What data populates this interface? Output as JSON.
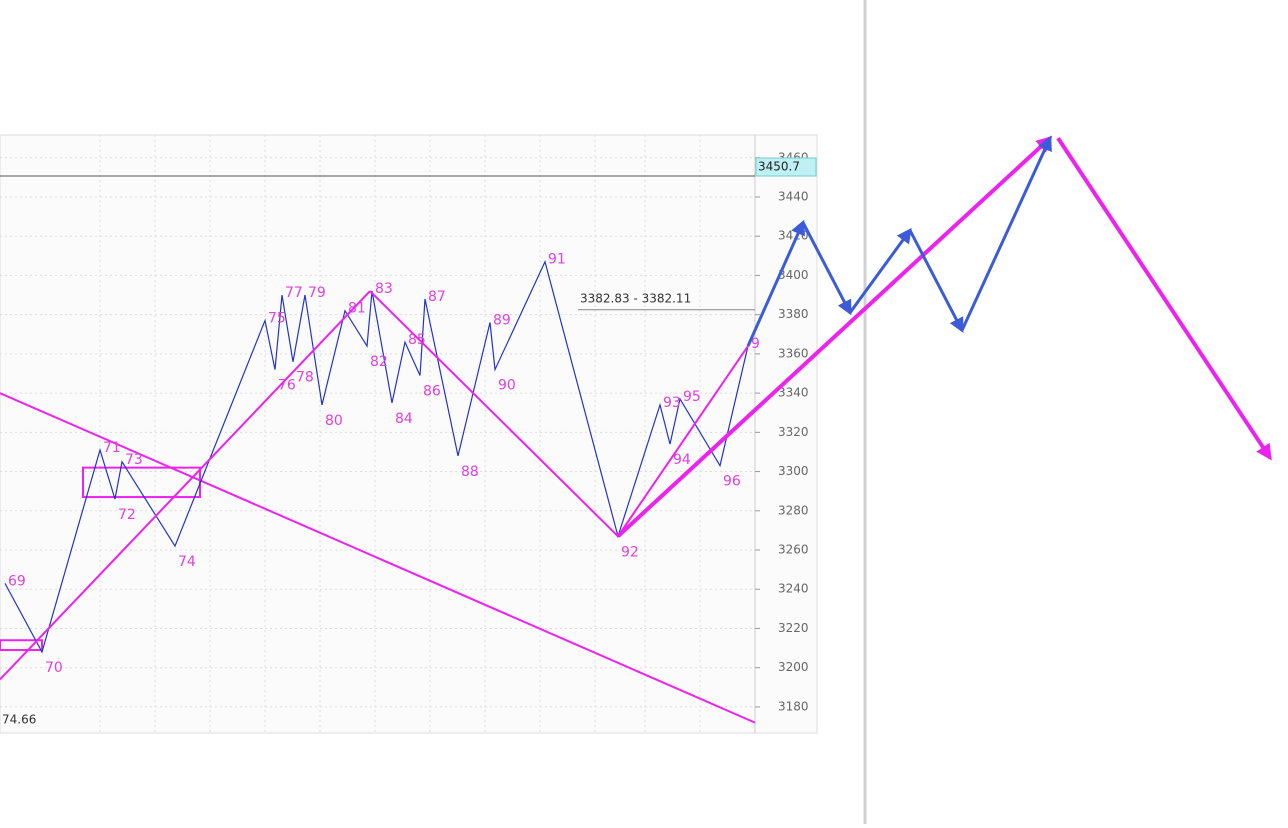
{
  "chart_data": {
    "type": "line",
    "ylim": [
      3166.7,
      3471.6
    ],
    "yticks": [
      3180,
      3200,
      3220,
      3240,
      3260,
      3280,
      3300,
      3320,
      3340,
      3360,
      3380,
      3400,
      3420,
      3440,
      3460
    ],
    "grid": true,
    "last_price": 3450.7,
    "range_label": "3382.83 - 3382.11",
    "range_level": 3382.5,
    "corner_label": "74.66",
    "waves": {
      "color": "#2233cc",
      "label_color": "#e040e0",
      "labels": [
        "69",
        "70",
        "71",
        "72",
        "73",
        "74",
        "75",
        "76",
        "77",
        "78",
        "79",
        "80",
        "81",
        "82",
        "83",
        "84",
        "85",
        "86",
        "87",
        "88",
        "89",
        "90",
        "91",
        "92",
        "93",
        "94",
        "95",
        "96",
        "9"
      ],
      "values": [
        3243,
        3208,
        3311,
        3286,
        3305,
        3262,
        3377,
        3352,
        3390,
        3356,
        3390,
        3334,
        3382,
        3364,
        3392,
        3335,
        3366,
        3349,
        3388,
        3308,
        3376,
        3352,
        3407,
        3267,
        3334,
        3314,
        3337,
        3303,
        3364
      ]
    },
    "trendline": {
      "color": "#ee22ee",
      "values": [
        3340,
        3172
      ]
    },
    "magenta_path": {
      "color": "#ee22ee",
      "values": [
        3194,
        3392,
        3267,
        3470,
        3307
      ]
    },
    "projection": {
      "color": "#3b5bd9",
      "values": [
        3427,
        3381,
        3423,
        3372,
        3470
      ]
    },
    "boxes": [
      {
        "values": [
          3302,
          3287
        ]
      },
      {
        "values": [
          3214,
          3209
        ]
      }
    ]
  }
}
